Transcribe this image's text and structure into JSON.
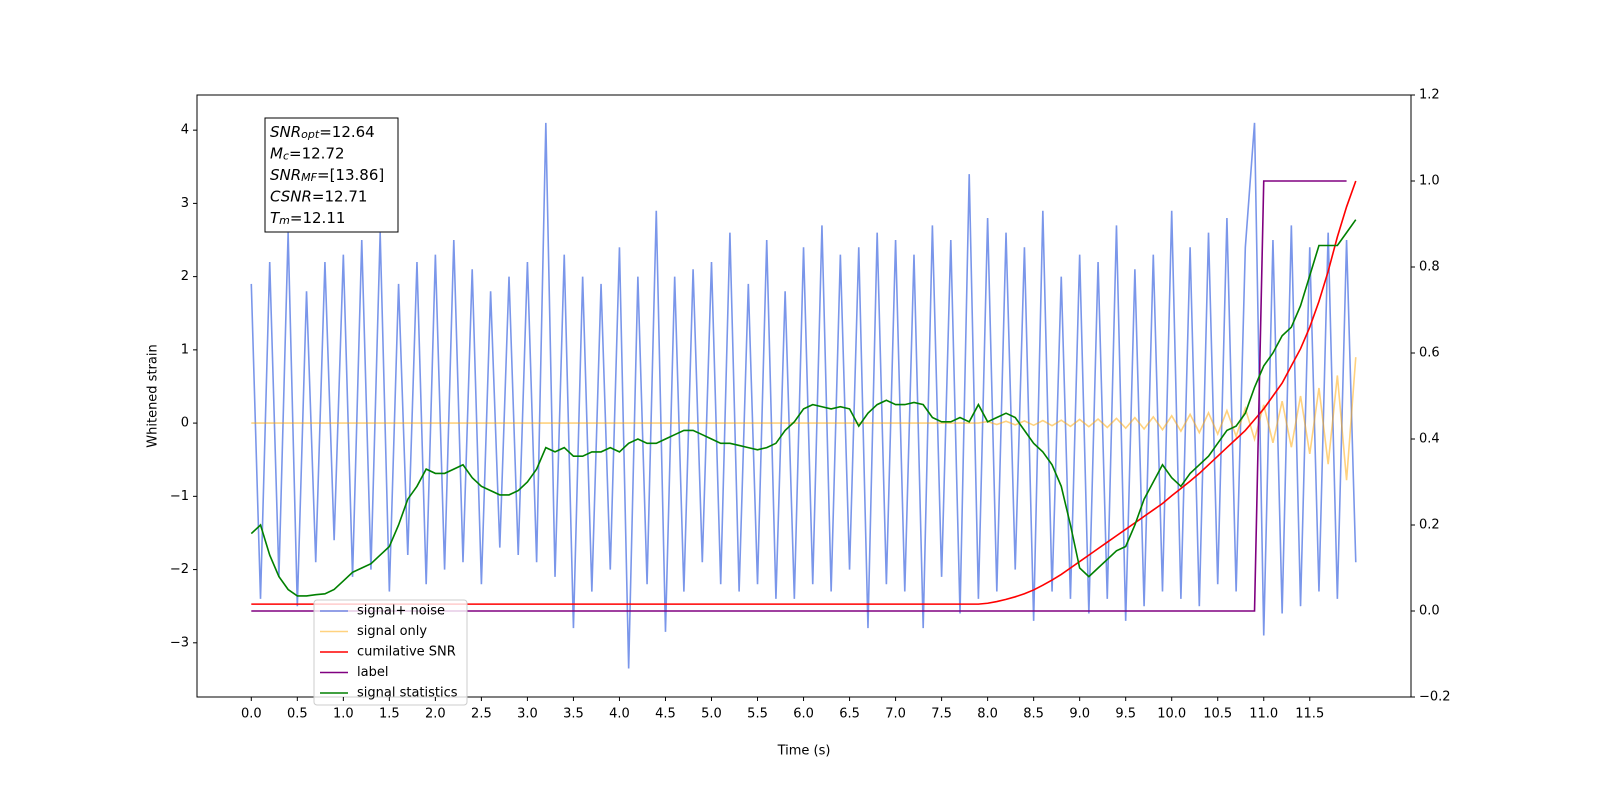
{
  "chart_data": {
    "type": "line",
    "xlabel": "Time (s)",
    "ylabel": "Whitened strain",
    "xlim": [
      -0.59,
      12.6
    ],
    "ylim": [
      -3.74,
      4.48
    ],
    "y2lim": [
      -0.2,
      1.2
    ],
    "xticks": [
      {
        "value": 0,
        "label": "0.0"
      },
      0.5,
      {
        "value": 1,
        "label": "1.0"
      },
      1.5,
      {
        "value": 2,
        "label": "2.0"
      },
      2.5,
      {
        "value": 3,
        "label": "3.0"
      },
      3.5,
      {
        "value": 4,
        "label": "4.0"
      },
      4.5,
      {
        "value": 5,
        "label": "5.0"
      },
      5.5,
      {
        "value": 6,
        "label": "6.0"
      },
      6.5,
      {
        "value": 7,
        "label": "7.0"
      },
      7.5,
      {
        "value": 8,
        "label": "8.0"
      },
      8.5,
      {
        "value": 9,
        "label": "9.0"
      },
      9.5,
      {
        "value": 10,
        "label": "10.0"
      },
      10.5,
      {
        "value": 11,
        "label": "11.0"
      },
      11.5
    ],
    "yticks": [
      {
        "value": -3,
        "label": "−3"
      },
      {
        "value": -2,
        "label": "−2"
      },
      {
        "value": -1,
        "label": "−1"
      },
      0,
      1,
      2,
      3,
      4
    ],
    "y2ticks": [
      {
        "value": -0.2,
        "label": "−0.2"
      },
      {
        "value": 0,
        "label": "0.0"
      },
      0.2,
      0.4,
      0.6,
      0.8,
      {
        "value": 1,
        "label": "1.0"
      },
      1.2
    ],
    "legend": "lower left",
    "annotation": [
      {
        "text": "SNR",
        "sub": "opt",
        "rest": "=12.64"
      },
      {
        "text": "M",
        "sub": "c",
        "rest": "=12.72"
      },
      {
        "text": "SNR",
        "sub": "MF",
        "rest": "=[13.86]"
      },
      {
        "text": "CSNR",
        "sub": "",
        "rest": "=12.71"
      },
      {
        "text": "T",
        "sub": "m",
        "rest": "=12.11"
      }
    ],
    "x": [
      0,
      0.1,
      0.2,
      0.3,
      0.4,
      0.5,
      0.6,
      0.7,
      0.8,
      0.9,
      1,
      1.1,
      1.2,
      1.3,
      1.4,
      1.5,
      1.6,
      1.7,
      1.8,
      1.9,
      2,
      2.1,
      2.2,
      2.3,
      2.4,
      2.5,
      2.6,
      2.7,
      2.8,
      2.9,
      3,
      3.1,
      3.2,
      3.3,
      3.4,
      3.5,
      3.6,
      3.7,
      3.8,
      3.9,
      4,
      4.1,
      4.2,
      4.3,
      4.4,
      4.5,
      4.6,
      4.7,
      4.8,
      4.9,
      5,
      5.1,
      5.2,
      5.3,
      5.4,
      5.5,
      5.6,
      5.7,
      5.8,
      5.9,
      6,
      6.1,
      6.2,
      6.3,
      6.4,
      6.5,
      6.6,
      6.7,
      6.8,
      6.9,
      7,
      7.1,
      7.2,
      7.3,
      7.4,
      7.5,
      7.6,
      7.7,
      7.8,
      7.9,
      8,
      8.1,
      8.2,
      8.3,
      8.4,
      8.5,
      8.6,
      8.7,
      8.8,
      8.9,
      9,
      9.1,
      9.2,
      9.3,
      9.4,
      9.5,
      9.6,
      9.7,
      9.8,
      9.9,
      10,
      10.1,
      10.2,
      10.3,
      10.4,
      10.5,
      10.6,
      10.7,
      10.8,
      10.9,
      11,
      11.1,
      11.2,
      11.3,
      11.4,
      11.5,
      11.6,
      11.7,
      11.8,
      11.9,
      12
    ],
    "series": [
      {
        "name": "signal+ noise",
        "color": "#4169e1",
        "opacity": 0.7,
        "values": [
          1.9,
          -2.4,
          2.2,
          -2.1,
          2.6,
          -2.5,
          1.8,
          -1.9,
          2.2,
          -1.6,
          2.3,
          -2.1,
          2.5,
          -2.0,
          2.6,
          -2.3,
          1.9,
          -1.8,
          2.2,
          -2.2,
          2.3,
          -2.0,
          2.5,
          -1.9,
          2.1,
          -2.2,
          1.8,
          -1.7,
          2.0,
          -1.8,
          2.2,
          -1.9,
          4.1,
          -2.1,
          2.3,
          -2.8,
          2.0,
          -2.3,
          1.9,
          -2.0,
          2.4,
          -3.35,
          2.0,
          -2.2,
          2.9,
          -2.85,
          2.0,
          -2.3,
          2.1,
          -1.9,
          2.2,
          -2.2,
          2.6,
          -2.3,
          1.9,
          -2.2,
          2.5,
          -2.4,
          1.8,
          -2.4,
          2.4,
          -2.2,
          2.7,
          -2.3,
          2.3,
          -2.0,
          2.4,
          -2.8,
          2.6,
          -2.2,
          2.5,
          -2.3,
          2.3,
          -2.8,
          2.7,
          -2.1,
          2.5,
          -2.6,
          3.4,
          -2.4,
          2.8,
          -2.3,
          2.6,
          -2.0,
          2.4,
          -2.7,
          2.9,
          -2.3,
          2.0,
          -2.4,
          2.3,
          -2.6,
          2.2,
          -2.4,
          2.7,
          -2.7,
          2.1,
          -2.5,
          2.3,
          -2.3,
          2.9,
          -2.4,
          2.4,
          -2.5,
          2.6,
          -2.2,
          2.8,
          -2.3,
          2.4,
          4.1,
          -2.9,
          2.5,
          -2.6,
          2.7,
          -2.5,
          2.4,
          -2.3,
          2.6,
          -2.4,
          2.5,
          -1.9
        ]
      },
      {
        "name": "signal only",
        "color": "#ffa500",
        "opacity": 0.5,
        "values": [
          0,
          0,
          0,
          0,
          0,
          0,
          0,
          0,
          0,
          0,
          0,
          0,
          0,
          0,
          0,
          0,
          0,
          0,
          0,
          0,
          0,
          0,
          0,
          0,
          0,
          0,
          0,
          0,
          0,
          0,
          0,
          0,
          0,
          0,
          0,
          0,
          0,
          0,
          0,
          0,
          0,
          0,
          0,
          0,
          0,
          0,
          0,
          0,
          0,
          0,
          0,
          0,
          0,
          0,
          0,
          0,
          0,
          0,
          0,
          0,
          0,
          0,
          0,
          0,
          0,
          0,
          0,
          0,
          0,
          0,
          0,
          0,
          0,
          0,
          0,
          0,
          0,
          0,
          0,
          0,
          0.02,
          -0.02,
          0.025,
          -0.025,
          0.03,
          -0.03,
          0.035,
          -0.035,
          0.04,
          -0.045,
          0.05,
          -0.05,
          0.055,
          -0.06,
          0.065,
          -0.07,
          0.075,
          -0.08,
          0.085,
          -0.09,
          0.1,
          -0.11,
          0.12,
          -0.13,
          0.14,
          -0.15,
          0.17,
          -0.18,
          0.2,
          -0.22,
          0.25,
          -0.27,
          0.3,
          -0.33,
          0.37,
          -0.42,
          0.48,
          -0.56,
          0.65,
          -0.78,
          0.9
        ]
      },
      {
        "name": "cumilative SNR",
        "color": "#ff0000",
        "axis": "y2",
        "values": [
          0.016,
          0.016,
          0.016,
          0.016,
          0.016,
          0.016,
          0.016,
          0.016,
          0.016,
          0.016,
          0.016,
          0.016,
          0.016,
          0.016,
          0.016,
          0.016,
          0.016,
          0.016,
          0.016,
          0.016,
          0.016,
          0.016,
          0.016,
          0.016,
          0.016,
          0.016,
          0.016,
          0.016,
          0.016,
          0.016,
          0.016,
          0.016,
          0.016,
          0.016,
          0.016,
          0.016,
          0.016,
          0.016,
          0.016,
          0.016,
          0.016,
          0.016,
          0.016,
          0.016,
          0.016,
          0.016,
          0.016,
          0.016,
          0.016,
          0.016,
          0.016,
          0.016,
          0.016,
          0.016,
          0.016,
          0.016,
          0.016,
          0.016,
          0.016,
          0.016,
          0.016,
          0.016,
          0.016,
          0.016,
          0.016,
          0.016,
          0.016,
          0.016,
          0.016,
          0.016,
          0.016,
          0.016,
          0.016,
          0.016,
          0.016,
          0.016,
          0.016,
          0.016,
          0.016,
          0.016,
          0.018,
          0.022,
          0.027,
          0.033,
          0.04,
          0.049,
          0.06,
          0.072,
          0.085,
          0.1,
          0.115,
          0.13,
          0.145,
          0.16,
          0.175,
          0.19,
          0.205,
          0.22,
          0.235,
          0.25,
          0.268,
          0.285,
          0.302,
          0.32,
          0.34,
          0.36,
          0.38,
          0.4,
          0.42,
          0.445,
          0.47,
          0.5,
          0.53,
          0.57,
          0.61,
          0.66,
          0.72,
          0.79,
          0.87,
          0.94,
          1.0
        ]
      },
      {
        "name": "label",
        "color": "#800080",
        "axis": "y2",
        "values": [
          0,
          0,
          0,
          0,
          0,
          0,
          0,
          0,
          0,
          0,
          0,
          0,
          0,
          0,
          0,
          0,
          0,
          0,
          0,
          0,
          0,
          0,
          0,
          0,
          0,
          0,
          0,
          0,
          0,
          0,
          0,
          0,
          0,
          0,
          0,
          0,
          0,
          0,
          0,
          0,
          0,
          0,
          0,
          0,
          0,
          0,
          0,
          0,
          0,
          0,
          0,
          0,
          0,
          0,
          0,
          0,
          0,
          0,
          0,
          0,
          0,
          0,
          0,
          0,
          0,
          0,
          0,
          0,
          0,
          0,
          0,
          0,
          0,
          0,
          0,
          0,
          0,
          0,
          0,
          0,
          0,
          0,
          0,
          0,
          0,
          0,
          0,
          0,
          0,
          0,
          0,
          0,
          0,
          0,
          0,
          0,
          0,
          0,
          0,
          0,
          0,
          0,
          0,
          0,
          0,
          0,
          0,
          0,
          0,
          0,
          1,
          1,
          1,
          1,
          1,
          1,
          1,
          1,
          1,
          1,
          null
        ]
      },
      {
        "name": "signal statistics",
        "color": "#008000",
        "axis": "y2",
        "values": [
          0.18,
          0.2,
          0.13,
          0.08,
          0.05,
          0.035,
          0.035,
          0.038,
          0.04,
          0.05,
          0.07,
          0.09,
          0.1,
          0.11,
          0.13,
          0.15,
          0.2,
          0.26,
          0.29,
          0.33,
          0.32,
          0.32,
          0.33,
          0.34,
          0.31,
          0.29,
          0.28,
          0.27,
          0.27,
          0.28,
          0.3,
          0.33,
          0.38,
          0.37,
          0.38,
          0.36,
          0.36,
          0.37,
          0.37,
          0.38,
          0.37,
          0.39,
          0.4,
          0.39,
          0.39,
          0.4,
          0.41,
          0.42,
          0.42,
          0.41,
          0.4,
          0.39,
          0.39,
          0.385,
          0.38,
          0.375,
          0.38,
          0.39,
          0.42,
          0.44,
          0.47,
          0.48,
          0.475,
          0.47,
          0.475,
          0.47,
          0.43,
          0.46,
          0.48,
          0.49,
          0.48,
          0.48,
          0.485,
          0.48,
          0.45,
          0.44,
          0.44,
          0.45,
          0.44,
          0.48,
          0.44,
          0.45,
          0.46,
          0.45,
          0.42,
          0.39,
          0.37,
          0.34,
          0.29,
          0.2,
          0.1,
          0.08,
          0.1,
          0.12,
          0.14,
          0.15,
          0.2,
          0.26,
          0.3,
          0.34,
          0.31,
          0.29,
          0.32,
          0.34,
          0.36,
          0.39,
          0.42,
          0.43,
          0.46,
          0.52,
          0.57,
          0.6,
          0.64,
          0.66,
          0.71,
          0.78,
          0.85,
          0.85,
          0.85,
          0.88,
          0.91
        ]
      }
    ]
  }
}
